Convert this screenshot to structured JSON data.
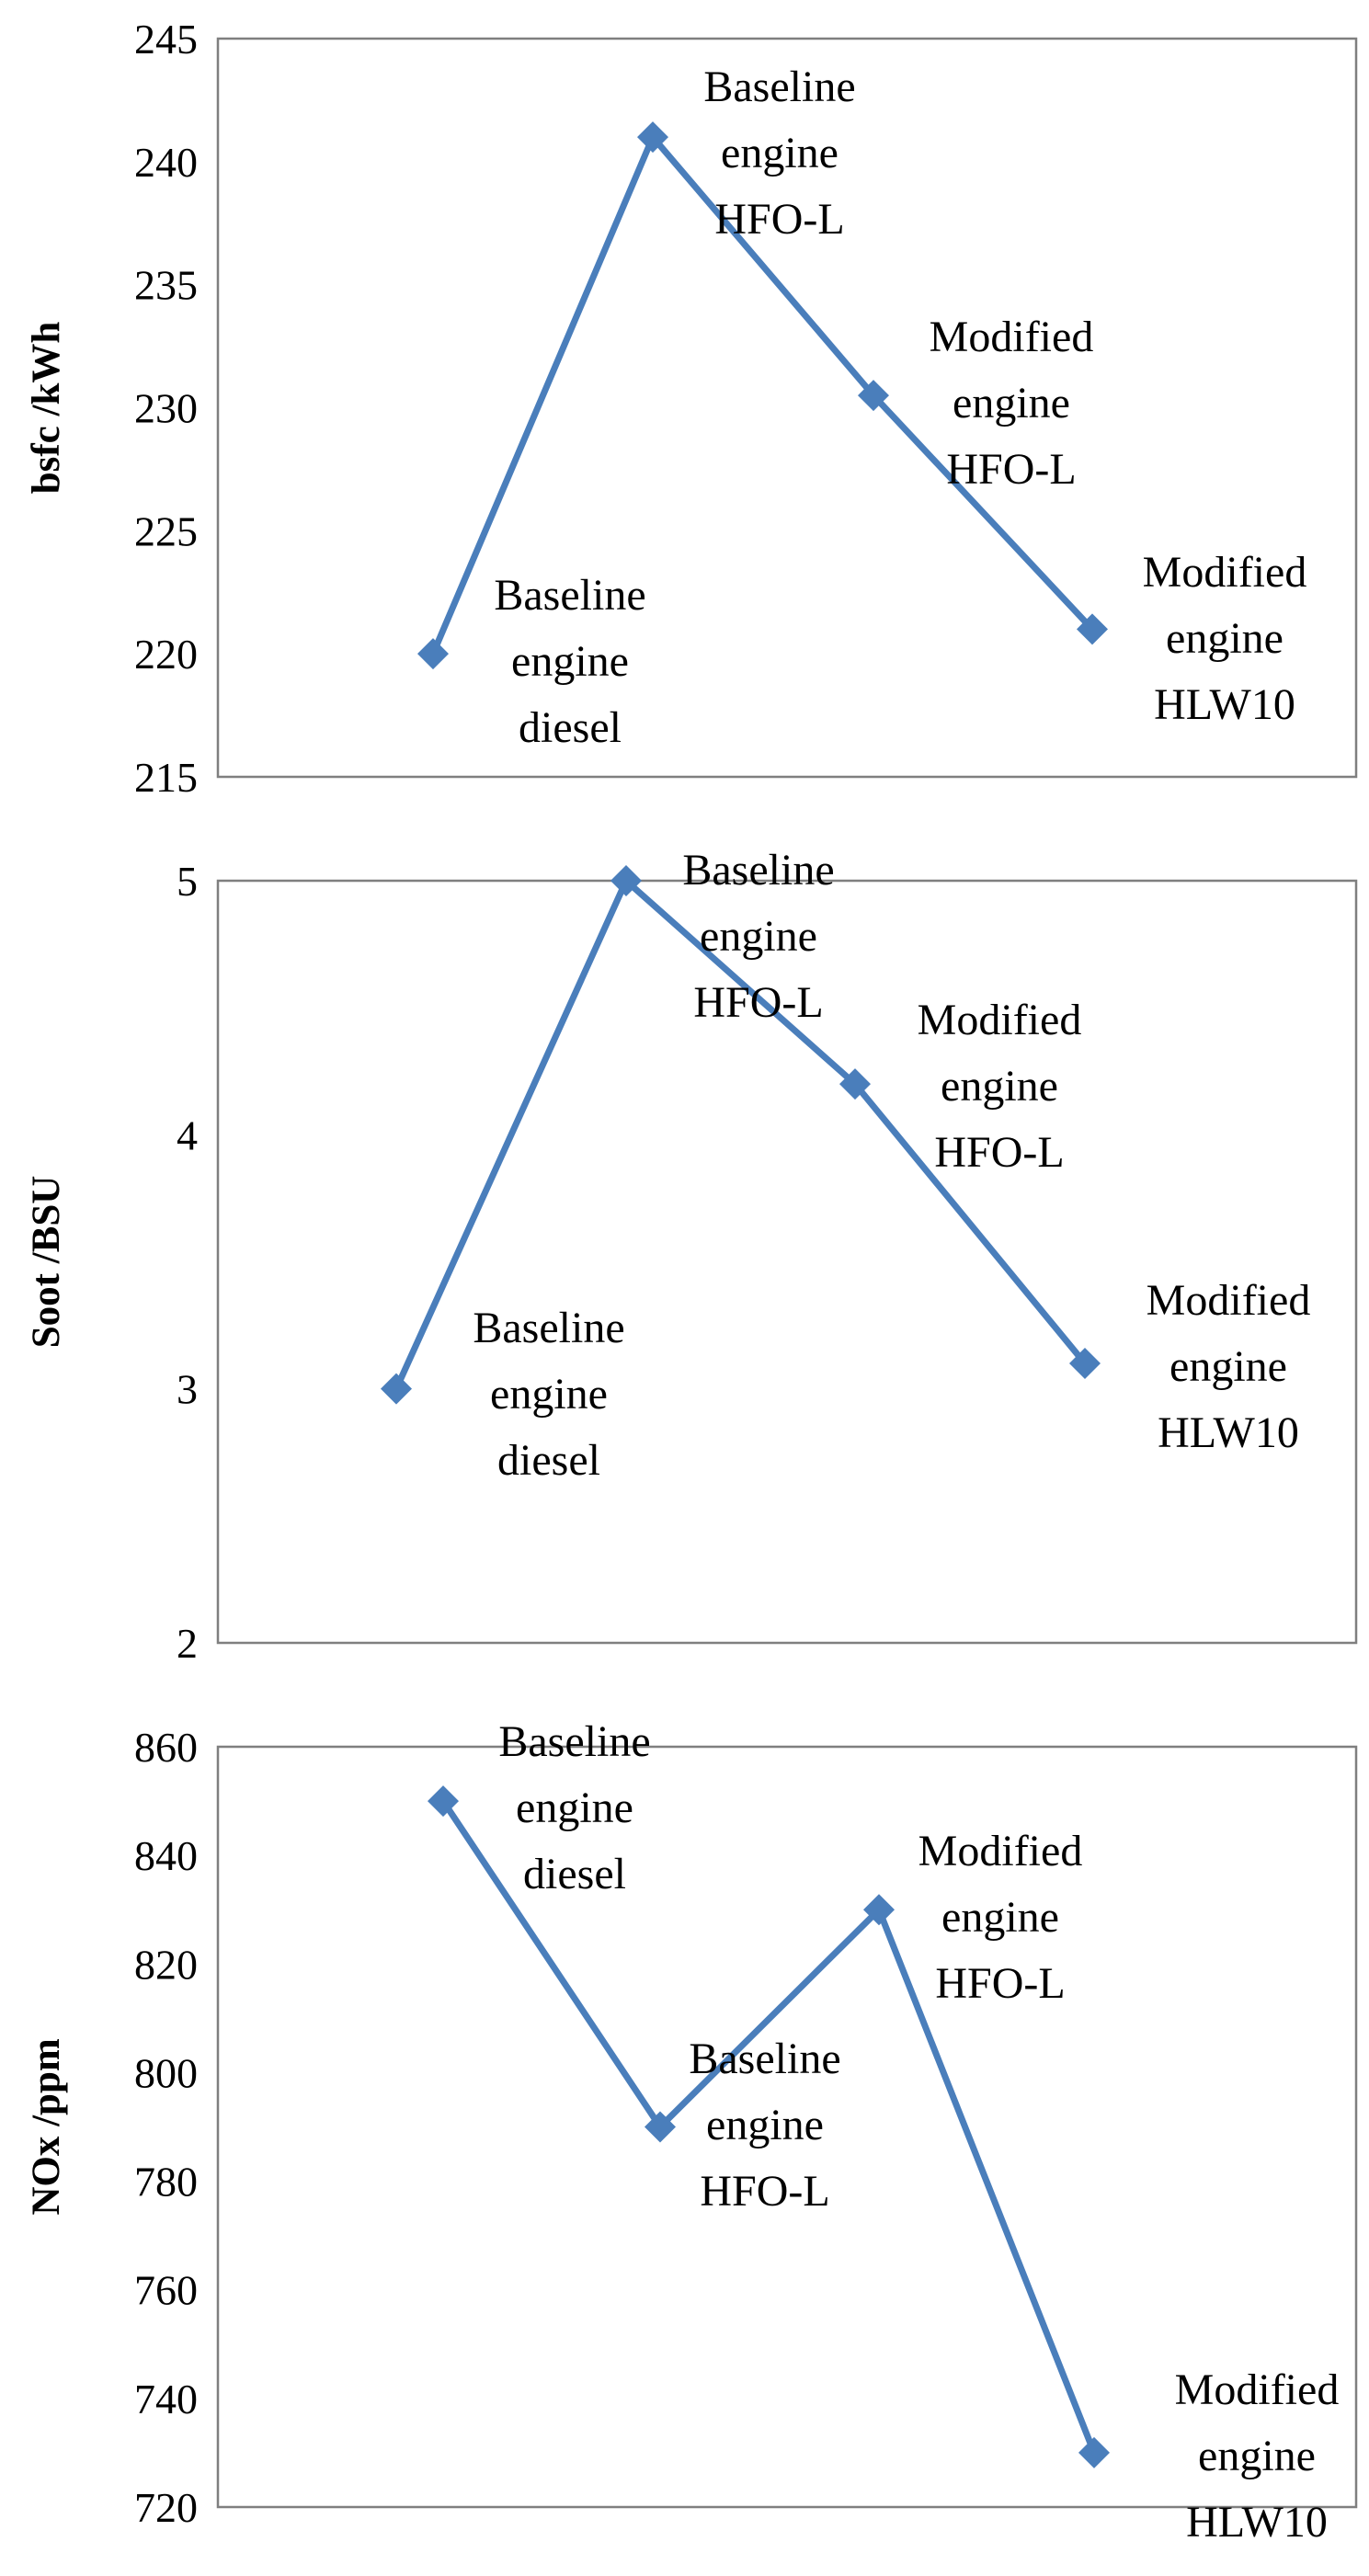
{
  "chart_data": [
    {
      "type": "line",
      "xlabel": "",
      "ylabel": "bsfc /kWh",
      "ylim": [
        215,
        245
      ],
      "yticks": [
        215,
        220,
        225,
        230,
        235,
        240,
        245
      ],
      "grid": false,
      "points": [
        {
          "value": 220,
          "label": [
            "Baseline",
            "engine",
            "diesel"
          ]
        },
        {
          "value": 241,
          "label": [
            "Baseline",
            "engine",
            "HFO-L"
          ]
        },
        {
          "value": 230.5,
          "label": [
            "Modified",
            "engine",
            "HFO-L"
          ]
        },
        {
          "value": 221,
          "label": [
            "Modified",
            "engine",
            "HLW10"
          ]
        }
      ]
    },
    {
      "type": "line",
      "xlabel": "",
      "ylabel": "Soot /BSU",
      "ylim": [
        2,
        5
      ],
      "yticks": [
        2,
        3,
        4,
        5
      ],
      "grid": false,
      "points": [
        {
          "value": 3,
          "label": [
            "Baseline",
            "engine",
            "diesel"
          ]
        },
        {
          "value": 5,
          "label": [
            "Baseline",
            "engine",
            "HFO-L"
          ]
        },
        {
          "value": 4.2,
          "label": [
            "Modified",
            "engine",
            "HFO-L"
          ]
        },
        {
          "value": 3.1,
          "label": [
            "Modified",
            "engine",
            "HLW10"
          ]
        }
      ]
    },
    {
      "type": "line",
      "xlabel": "",
      "ylabel": "NOx /ppm",
      "ylim": [
        720,
        860
      ],
      "yticks": [
        720,
        740,
        760,
        780,
        800,
        820,
        840,
        860
      ],
      "grid": false,
      "points": [
        {
          "value": 850,
          "label": [
            "Baseline",
            "engine",
            "diesel"
          ]
        },
        {
          "value": 790,
          "label": [
            "Baseline",
            "engine",
            "HFO-L"
          ]
        },
        {
          "value": 830,
          "label": [
            "Modified",
            "engine",
            "HFO-L"
          ]
        },
        {
          "value": 730,
          "label": [
            "Modified",
            "engine",
            "HLW10"
          ]
        }
      ]
    }
  ],
  "colors": {
    "series": "#4a7ebb",
    "frame": "#7f7f7f"
  }
}
